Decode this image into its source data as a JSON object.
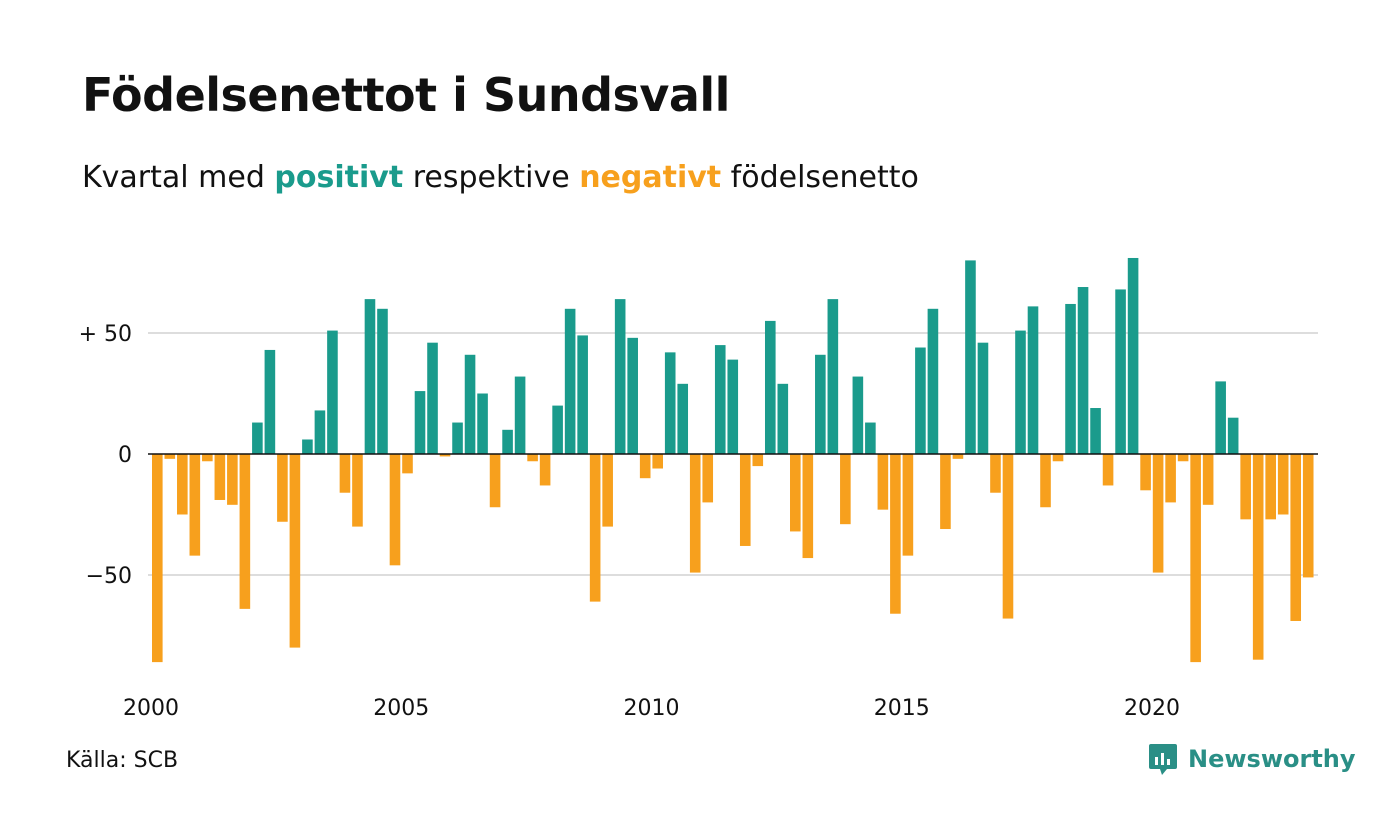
{
  "title": "Födelsenettot i Sundsvall",
  "subtitle": {
    "prefix": "Kvartal med ",
    "positive_word": "positivt",
    "middle": " respektive ",
    "negative_word": "negativt",
    "suffix": " födelsenetto"
  },
  "source": "Källa: SCB",
  "brand": "Newsworthy",
  "colors": {
    "positive": "#1a9b8c",
    "negative": "#f7a01d",
    "grid": "#dddddd",
    "zero_line": "#111111",
    "brand": "#2a8f86"
  },
  "chart_data": {
    "type": "bar",
    "y_ticks": [
      {
        "value": 50,
        "label": "+ 50"
      },
      {
        "value": 0,
        "label": "0"
      },
      {
        "value": -50,
        "label": "−50"
      }
    ],
    "x_ticks": [
      {
        "year": 2000,
        "label": "2000"
      },
      {
        "year": 2005,
        "label": "2005"
      },
      {
        "year": 2010,
        "label": "2010"
      },
      {
        "year": 2015,
        "label": "2015"
      },
      {
        "year": 2020,
        "label": "2020"
      }
    ],
    "ylim": [
      -88,
      82
    ],
    "grid": true,
    "start_quarter": "2000-Q1",
    "values": [
      -86,
      -2,
      -25,
      -42,
      -3,
      -19,
      -21,
      -64,
      13,
      43,
      -28,
      -80,
      6,
      18,
      51,
      -16,
      -30,
      64,
      60,
      -46,
      -8,
      26,
      46,
      -1,
      13,
      41,
      25,
      -22,
      10,
      32,
      -3,
      -13,
      20,
      60,
      49,
      -61,
      -30,
      64,
      48,
      -10,
      -6,
      42,
      29,
      -49,
      -20,
      45,
      39,
      -38,
      -5,
      55,
      29,
      -32,
      -43,
      41,
      64,
      -29,
      32,
      13,
      -23,
      -66,
      -42,
      44,
      60,
      -31,
      -2,
      80,
      46,
      -16,
      -68,
      51,
      61,
      -22,
      -3,
      62,
      69,
      19,
      -13,
      68,
      81,
      -15,
      -49,
      -20,
      -3,
      -86,
      -21,
      30,
      15,
      -27,
      -85,
      -27,
      -25,
      -69,
      -51
    ]
  }
}
